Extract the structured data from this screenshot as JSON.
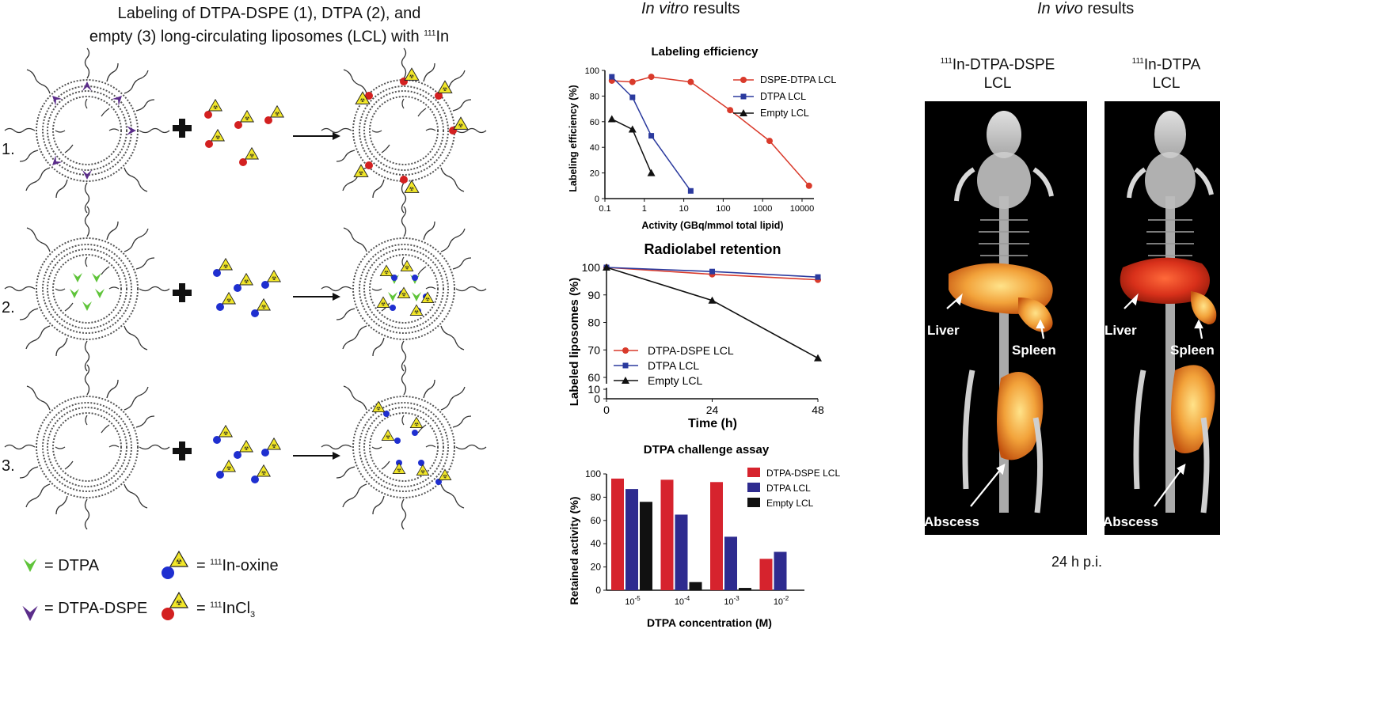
{
  "left_panel": {
    "title_line1": "Labeling of DTPA-DSPE (1), DTPA (2), and",
    "title_line2_pre": "empty (3) long-circulating liposomes (LCL) with ",
    "title_line2_sup": "111",
    "title_line2_post": "In",
    "rows": [
      "1.",
      "2.",
      "3."
    ],
    "legend": {
      "dtpa": "= DTPA",
      "dtpa_dspe": "= DTPA-DSPE",
      "oxine_sup": "111",
      "oxine": "In-oxine",
      "oxine_eq": "= ",
      "incl_sup": "111",
      "incl": "InCl",
      "incl_sub": "3",
      "incl_eq": "= "
    }
  },
  "in_vitro_header": {
    "italic": "In vitro",
    "rest": " results"
  },
  "in_vivo_header": {
    "italic": "In vivo",
    "rest": " results"
  },
  "in_vivo": {
    "mouse1_sup": "111",
    "mouse1_line1": "In-DTPA-DSPE",
    "mouse1_line2": "LCL",
    "mouse2_sup": "111",
    "mouse2_line1": "In-DTPA",
    "mouse2_line2": "LCL",
    "labels": {
      "liver": "Liver",
      "spleen": "Spleen",
      "abscess": "Abscess"
    },
    "timepoint": "24 h p.i."
  },
  "colors": {
    "red": "#d93a2b",
    "blue": "#2b3a9e",
    "black": "#111111",
    "bar_red": "#d6232d",
    "bar_blue": "#2e2b8f"
  },
  "chart_data": [
    {
      "type": "line",
      "title": "Labeling efficiency",
      "xlabel": "Activity (GBq/mmol total lipid)",
      "ylabel": "Labeling efficiency (%)",
      "xscale": "log",
      "xlim": [
        0.1,
        20000
      ],
      "ylim": [
        0,
        100
      ],
      "xticks": [
        "0.1",
        "1",
        "10",
        "100",
        "1000",
        "10000"
      ],
      "yticks": [
        "0",
        "20",
        "40",
        "60",
        "80",
        "100"
      ],
      "legend": "top-right",
      "series": [
        {
          "name": "DSPE-DTPA LCL",
          "color": "#d93a2b",
          "marker": "circle",
          "x": [
            0.15,
            0.5,
            1.5,
            15,
            150,
            1500,
            15000
          ],
          "y": [
            92,
            91,
            95,
            91,
            69,
            45,
            10
          ]
        },
        {
          "name": "DTPA LCL",
          "color": "#2b3a9e",
          "marker": "square",
          "x": [
            0.15,
            0.5,
            1.5,
            15
          ],
          "y": [
            95,
            79,
            49,
            6
          ]
        },
        {
          "name": "Empty LCL",
          "color": "#111111",
          "marker": "triangle",
          "x": [
            0.15,
            0.5,
            1.5
          ],
          "y": [
            62,
            54,
            20
          ]
        }
      ]
    },
    {
      "type": "line",
      "title": "Radiolabel retention",
      "xlabel": "Time (h)",
      "ylabel": "Labeled liposomes (%)",
      "xlim": [
        0,
        48
      ],
      "yticks": [
        "0",
        "10",
        "60",
        "70",
        "80",
        "90",
        "100"
      ],
      "xticks": [
        "0",
        "24",
        "48"
      ],
      "axis_break": [
        10,
        60
      ],
      "legend": "bottom-left",
      "series": [
        {
          "name": "DTPA-DSPE LCL",
          "color": "#d93a2b",
          "marker": "circle",
          "x": [
            0,
            24,
            48
          ],
          "y": [
            100,
            97.5,
            95.5
          ]
        },
        {
          "name": "DTPA LCL",
          "color": "#2b3a9e",
          "marker": "square",
          "x": [
            0,
            24,
            48
          ],
          "y": [
            100,
            98.5,
            96.5
          ]
        },
        {
          "name": "Empty LCL",
          "color": "#111111",
          "marker": "triangle",
          "x": [
            0,
            24,
            48
          ],
          "y": [
            100,
            88,
            67
          ]
        }
      ]
    },
    {
      "type": "bar",
      "title": "DTPA challenge assay",
      "xlabel": "DTPA concentration (M)",
      "ylabel": "Retained activity (%)",
      "ylim": [
        0,
        100
      ],
      "yticks": [
        "0",
        "20",
        "40",
        "60",
        "80",
        "100"
      ],
      "categories": [
        {
          "base": "10",
          "exp": "-5"
        },
        {
          "base": "10",
          "exp": "-4"
        },
        {
          "base": "10",
          "exp": "-3"
        },
        {
          "base": "10",
          "exp": "-2"
        }
      ],
      "legend": "top-right",
      "series": [
        {
          "name": "DTPA-DSPE LCL",
          "color": "#d6232d",
          "values": [
            96,
            95,
            93,
            27
          ]
        },
        {
          "name": "DTPA LCL",
          "color": "#2e2b8f",
          "values": [
            87,
            65,
            46,
            33
          ]
        },
        {
          "name": "Empty LCL",
          "color": "#111111",
          "values": [
            76,
            7,
            2,
            null
          ]
        }
      ]
    }
  ]
}
